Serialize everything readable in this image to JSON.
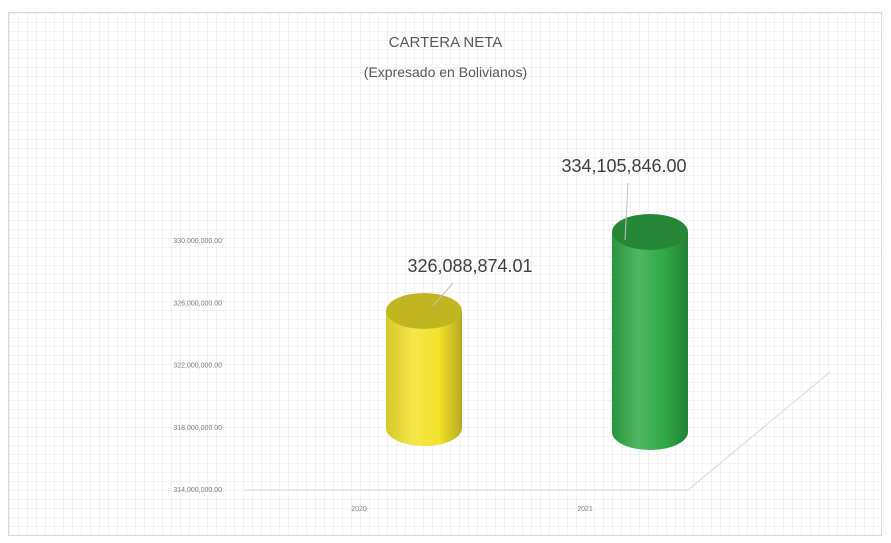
{
  "chart_data": {
    "type": "bar",
    "title": "CARTERA NETA",
    "subtitle": "(Expresado en Bolivianos)",
    "categories": [
      "2020",
      "2021"
    ],
    "values": [
      326088874.01,
      334105846.0
    ],
    "data_labels": [
      "326,088,874.01",
      "334,105,846.00"
    ],
    "colors": [
      "#f2e22a",
      "#2fa946"
    ],
    "y_ticks": [
      "314,000,000.00",
      "318,000,000.00",
      "322,000,000.00",
      "326,000,000.00",
      "330,000,000.00"
    ],
    "ylim": [
      314000000,
      330000000
    ],
    "xlabel": "",
    "ylabel": "",
    "grid": false,
    "legend": "none",
    "style": "3d-cylinder"
  }
}
